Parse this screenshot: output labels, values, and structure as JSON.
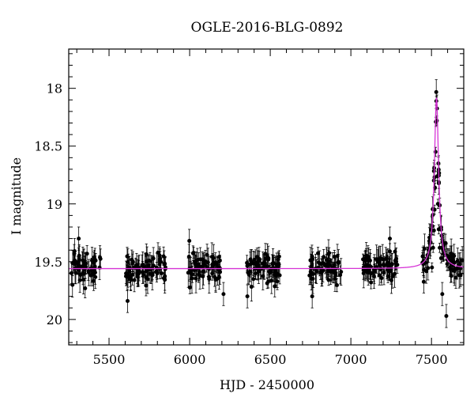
{
  "chart_data": {
    "type": "scatter",
    "title": "OGLE-2016-BLG-0892",
    "xlabel": "HJD - 2450000",
    "ylabel": "I magnitude",
    "xlim": [
      5250,
      7700
    ],
    "ylim": [
      20.22,
      17.66
    ],
    "y_inverted": true,
    "x_ticks": [
      5500,
      6000,
      6500,
      7000,
      7500
    ],
    "y_ticks": [
      18,
      18.5,
      19,
      19.5,
      20
    ],
    "x_minor_step": 100,
    "y_minor_step": 0.1,
    "grid": false,
    "data_color": "#000000",
    "model_color": "#d633d6",
    "model": {
      "baseline": 19.56,
      "t0": 7531,
      "peak": 18.08,
      "width": 16
    },
    "seasons": [
      [
        5265,
        5450
      ],
      [
        5600,
        5850
      ],
      [
        5990,
        6190
      ],
      [
        6350,
        6560
      ],
      [
        6740,
        6940
      ],
      [
        7070,
        7290
      ],
      [
        7440,
        7700
      ]
    ],
    "peak_points": [
      {
        "x": 7503,
        "y": 19.55
      },
      {
        "x": 7510,
        "y": 19.38
      },
      {
        "x": 7515,
        "y": 19.23
      },
      {
        "x": 7519,
        "y": 19.05
      },
      {
        "x": 7522,
        "y": 18.86
      },
      {
        "x": 7525,
        "y": 18.55
      },
      {
        "x": 7527,
        "y": 18.29
      },
      {
        "x": 7530,
        "y": 18.11
      },
      {
        "x": 7533,
        "y": 18.28
      },
      {
        "x": 7536,
        "y": 18.76
      },
      {
        "x": 7540,
        "y": 19.0
      },
      {
        "x": 7545,
        "y": 19.22
      },
      {
        "x": 7551,
        "y": 19.38
      },
      {
        "x": 7560,
        "y": 19.47
      }
    ],
    "outliers": [
      {
        "x": 5312,
        "y": 19.3
      },
      {
        "x": 5615,
        "y": 19.84
      },
      {
        "x": 5998,
        "y": 19.32
      },
      {
        "x": 6210,
        "y": 19.78
      },
      {
        "x": 6358,
        "y": 19.8
      },
      {
        "x": 6760,
        "y": 19.8
      },
      {
        "x": 7242,
        "y": 19.3
      },
      {
        "x": 7450,
        "y": 19.52
      },
      {
        "x": 7567,
        "y": 19.78
      },
      {
        "x": 7592,
        "y": 19.97
      },
      {
        "x": 7640,
        "y": 19.45
      }
    ]
  }
}
